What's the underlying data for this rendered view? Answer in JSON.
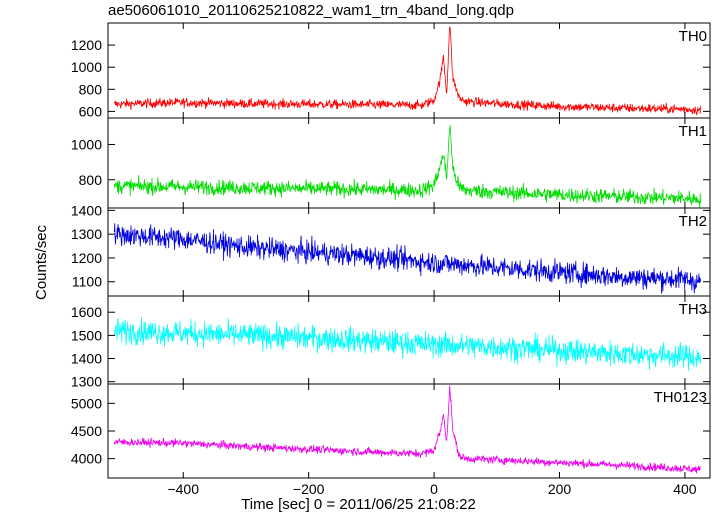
{
  "chart_data": {
    "type": "line",
    "title": "ae506061010_20110625210822_wam1_trn_4band_long.qdp",
    "xlabel": "Time [sec] 0 = 2011/06/25 21:08:22",
    "ylabel": "Counts/sec",
    "xlim": [
      -520,
      440
    ],
    "xticks": [
      -400,
      -200,
      0,
      200,
      400
    ],
    "grid": false,
    "panels": [
      {
        "name": "TH0",
        "color": "#ff0000",
        "ylim": [
          540,
          1400
        ],
        "yticks": [
          600,
          800,
          1000,
          1200
        ],
        "series": {
          "x": [
            -510,
            -400,
            -300,
            -200,
            -100,
            -20,
            0,
            10,
            15,
            20,
            25,
            30,
            40,
            50,
            100,
            200,
            300,
            400,
            425
          ],
          "y": [
            665,
            680,
            670,
            665,
            660,
            655,
            700,
            900,
            1100,
            750,
            1400,
            900,
            720,
            690,
            670,
            645,
            630,
            620,
            610
          ]
        }
      },
      {
        "name": "TH1",
        "color": "#00dd00",
        "ylim": [
          640,
          1150
        ],
        "yticks": [
          800,
          1000
        ],
        "series": {
          "x": [
            -510,
            -400,
            -300,
            -200,
            -100,
            -20,
            0,
            10,
            15,
            20,
            25,
            30,
            40,
            50,
            100,
            200,
            300,
            400,
            425
          ],
          "y": [
            765,
            760,
            755,
            750,
            745,
            740,
            770,
            880,
            950,
            800,
            1120,
            860,
            760,
            740,
            730,
            715,
            705,
            695,
            690
          ]
        }
      },
      {
        "name": "TH2",
        "color": "#0000dd",
        "ylim": [
          1040,
          1410
        ],
        "yticks": [
          1100,
          1200,
          1300,
          1400
        ],
        "series": {
          "x": [
            -510,
            -400,
            -300,
            -200,
            -100,
            0,
            100,
            200,
            300,
            400,
            425
          ],
          "y": [
            1300,
            1280,
            1245,
            1225,
            1205,
            1180,
            1160,
            1140,
            1120,
            1110,
            1100
          ]
        }
      },
      {
        "name": "TH3",
        "color": "#00ffff",
        "ylim": [
          1290,
          1670
        ],
        "yticks": [
          1300,
          1400,
          1500,
          1600
        ],
        "series": {
          "x": [
            -510,
            -400,
            -300,
            -200,
            -100,
            0,
            100,
            200,
            300,
            400,
            425
          ],
          "y": [
            1520,
            1510,
            1500,
            1490,
            1475,
            1460,
            1450,
            1435,
            1420,
            1410,
            1400
          ]
        }
      },
      {
        "name": "TH0123",
        "color": "#ee00ee",
        "ylim": [
          3650,
          5350
        ],
        "yticks": [
          4000,
          4500,
          5000
        ],
        "series": {
          "x": [
            -510,
            -400,
            -300,
            -200,
            -100,
            -20,
            0,
            10,
            15,
            20,
            25,
            30,
            40,
            50,
            100,
            200,
            300,
            400,
            425
          ],
          "y": [
            4300,
            4280,
            4220,
            4170,
            4120,
            4090,
            4150,
            4500,
            4800,
            4300,
            5300,
            4500,
            4050,
            4000,
            3980,
            3930,
            3880,
            3820,
            3800
          ]
        }
      }
    ]
  }
}
